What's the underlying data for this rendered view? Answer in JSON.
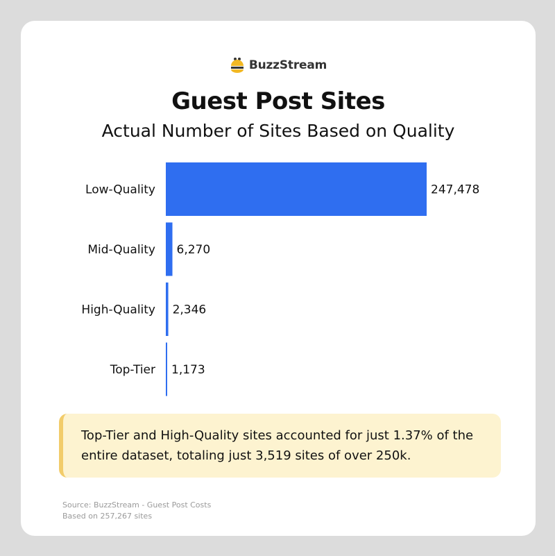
{
  "brand": {
    "name": "BuzzStream",
    "icon": "bee-icon",
    "icon_color": "#f2b824"
  },
  "title": "Guest Post Sites",
  "subtitle": "Actual Number of Sites Based on Quality",
  "chart_data": {
    "type": "bar",
    "orientation": "horizontal",
    "categories": [
      "Low-Quality",
      "Mid-Quality",
      "High-Quality",
      "Top-Tier"
    ],
    "values": [
      247478,
      6270,
      2346,
      1173
    ],
    "value_labels": [
      "247,478",
      "6,270",
      "2,346",
      "1,173"
    ],
    "bar_color": "#2f6ef0",
    "title": "Guest Post Sites",
    "subtitle": "Actual Number of Sites Based on Quality",
    "xlabel": "",
    "ylabel": "",
    "grid": false,
    "legend": "none"
  },
  "callout": {
    "text": "Top-Tier and High-Quality sites accounted for just 1.37% of the entire dataset, totaling just 3,519 sites of over 250k.",
    "accent_color": "#f2cc6a",
    "background_color": "#fdf3d0"
  },
  "source": {
    "line1": "Source: BuzzStream - Guest Post Costs",
    "line2": "Based on 257,267 sites"
  }
}
